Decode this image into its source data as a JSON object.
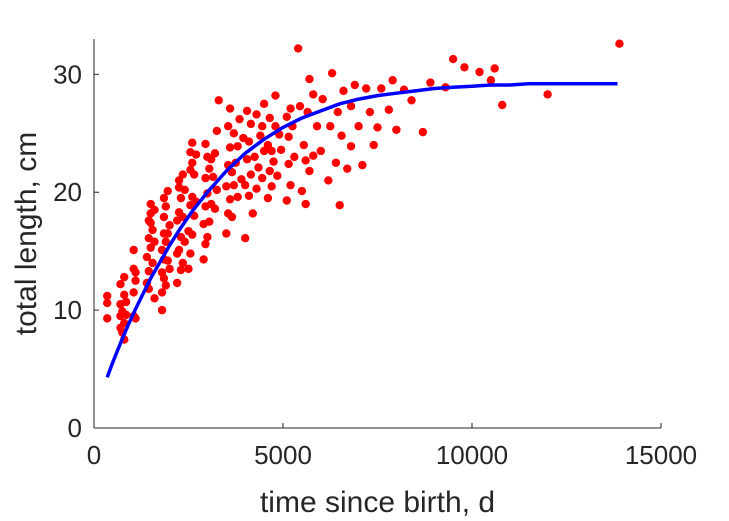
{
  "chart_data": {
    "type": "scatter",
    "title": "",
    "xlabel": "time since birth, d",
    "ylabel": "total length, cm",
    "xlim": [
      0,
      15000
    ],
    "ylim": [
      0,
      33
    ],
    "xticks": [
      0,
      5000,
      10000,
      15000
    ],
    "xtick_labels": [
      "0",
      "5000",
      "10000",
      "15000"
    ],
    "yticks": [
      0,
      10,
      20,
      30
    ],
    "ytick_labels": [
      "0",
      "10",
      "20",
      "30"
    ],
    "grid": false,
    "legend": "none",
    "colors": {
      "points": "#ff0000",
      "curve": "#0000ff",
      "axis": "#262626"
    },
    "series": [
      {
        "type": "scatter",
        "x": [
          350,
          350,
          350,
          700,
          700,
          700,
          700,
          750,
          750,
          800,
          800,
          800,
          800,
          850,
          850,
          1050,
          1050,
          1050,
          1050,
          1100,
          1100,
          1100,
          1400,
          1400,
          1450,
          1450,
          1450,
          1450,
          1500,
          1500,
          1500,
          1500,
          1550,
          1550,
          1600,
          1600,
          1600,
          1800,
          1800,
          1800,
          1800,
          1850,
          1850,
          1850,
          1850,
          1850,
          1900,
          1900,
          1900,
          1950,
          1950,
          1950,
          2000,
          2000,
          2200,
          2200,
          2200,
          2250,
          2250,
          2250,
          2250,
          2300,
          2300,
          2300,
          2350,
          2350,
          2350,
          2400,
          2400,
          2500,
          2500,
          2550,
          2550,
          2550,
          2550,
          2600,
          2600,
          2600,
          2600,
          2650,
          2650,
          2700,
          2700,
          2900,
          2900,
          2950,
          2950,
          2950,
          2950,
          3000,
          3000,
          3000,
          3050,
          3050,
          3100,
          3100,
          3150,
          3200,
          3200,
          3250,
          3250,
          3300,
          3500,
          3500,
          3550,
          3550,
          3550,
          3600,
          3600,
          3600,
          3650,
          3650,
          3700,
          3700,
          3750,
          3800,
          3800,
          3850,
          3900,
          3950,
          4000,
          4000,
          4050,
          4050,
          4100,
          4100,
          4150,
          4150,
          4200,
          4250,
          4300,
          4300,
          4350,
          4400,
          4450,
          4450,
          4500,
          4500,
          4600,
          4600,
          4650,
          4650,
          4700,
          4700,
          4750,
          4800,
          4800,
          4850,
          4900,
          4950,
          5100,
          5100,
          5150,
          5150,
          5200,
          5200,
          5250,
          5300,
          5400,
          5450,
          5500,
          5550,
          5600,
          5600,
          5650,
          5700,
          5700,
          5800,
          5800,
          5900,
          6000,
          6050,
          6200,
          6250,
          6300,
          6400,
          6450,
          6500,
          6550,
          6600,
          6700,
          6800,
          6800,
          6900,
          7000,
          7100,
          7200,
          7300,
          7400,
          7500,
          7600,
          7800,
          7900,
          8000,
          8200,
          8400,
          8700,
          8900,
          9300,
          9500,
          9800,
          10200,
          10500,
          10600,
          10800,
          12000,
          13900
        ],
        "y": [
          9.3,
          10.6,
          11.2,
          8.5,
          9.5,
          10.5,
          12.2,
          8.1,
          9.9,
          7.5,
          8.9,
          11.3,
          12.8,
          9.6,
          10.7,
          9.5,
          11.5,
          13.5,
          15.1,
          9.3,
          12.5,
          13.2,
          12.3,
          14.5,
          11.8,
          13.3,
          16.1,
          17.6,
          15.3,
          17.4,
          18.2,
          19.0,
          14.0,
          16.8,
          11.0,
          15.8,
          18.5,
          10.0,
          11.5,
          13.2,
          15.1,
          12.7,
          14.3,
          16.5,
          17.9,
          19.5,
          12.1,
          15.8,
          18.8,
          14.2,
          16.5,
          20.1,
          13.5,
          17.2,
          12.3,
          14.8,
          17.6,
          15.1,
          18.3,
          20.4,
          21.0,
          13.4,
          16.2,
          19.5,
          14.0,
          17.9,
          21.5,
          15.8,
          20.2,
          13.5,
          16.7,
          14.8,
          18.9,
          21.9,
          23.4,
          16.4,
          19.6,
          22.5,
          24.2,
          18.0,
          21.5,
          19.2,
          23.2,
          14.3,
          17.3,
          15.6,
          18.8,
          21.2,
          24.1,
          16.2,
          19.9,
          23.0,
          17.5,
          22.0,
          19.0,
          22.8,
          21.3,
          18.6,
          23.3,
          20.2,
          25.2,
          27.8,
          16.5,
          20.5,
          18.2,
          22.3,
          25.6,
          19.4,
          23.8,
          27.1,
          17.9,
          21.7,
          20.6,
          25.0,
          22.5,
          19.6,
          23.9,
          26.2,
          21.1,
          24.6,
          16.1,
          20.6,
          22.8,
          26.9,
          19.7,
          24.3,
          21.5,
          25.8,
          18.2,
          23.0,
          20.3,
          26.6,
          22.1,
          24.8,
          21.2,
          25.6,
          23.5,
          27.5,
          19.5,
          24.0,
          21.8,
          26.3,
          20.5,
          23.5,
          22.6,
          25.6,
          28.2,
          21.4,
          24.9,
          23.6,
          19.3,
          26.4,
          22.4,
          24.7,
          27.1,
          20.6,
          25.6,
          23.0,
          32.2,
          27.3,
          20.1,
          24.0,
          19.0,
          22.7,
          26.8,
          21.8,
          29.6,
          23.1,
          28.3,
          25.6,
          23.5,
          27.9,
          21.0,
          25.6,
          30.1,
          22.5,
          26.8,
          18.9,
          24.8,
          28.6,
          22.0,
          27.3,
          23.9,
          29.1,
          25.6,
          22.3,
          28.8,
          26.8,
          24.0,
          25.5,
          28.8,
          27.0,
          29.5,
          25.3,
          28.7,
          27.8,
          25.1,
          29.3,
          28.9,
          31.3,
          30.6,
          30.2,
          29.5,
          30.5,
          27.4,
          28.3,
          32.6
        ]
      },
      {
        "type": "line",
        "name": "",
        "x": [
          350,
          500,
          700,
          900,
          1100,
          1300,
          1500,
          1750,
          2000,
          2300,
          2600,
          3000,
          3500,
          4000,
          4500,
          5000,
          5500,
          6000,
          6500,
          7000,
          7500,
          8000,
          8500,
          9000,
          9500,
          10000,
          10500,
          11000,
          11500,
          12000,
          12500,
          13000,
          13500,
          13850
        ],
        "y": [
          4.3,
          5.6,
          7.2,
          8.7,
          10.1,
          11.4,
          12.7,
          14.1,
          15.5,
          17.0,
          18.4,
          20.0,
          21.8,
          23.3,
          24.5,
          25.5,
          26.3,
          26.9,
          27.5,
          27.9,
          28.2,
          28.4,
          28.6,
          28.8,
          28.9,
          29.0,
          29.1,
          29.1,
          29.2,
          29.2,
          29.2,
          29.2,
          29.2,
          29.2
        ]
      }
    ]
  }
}
